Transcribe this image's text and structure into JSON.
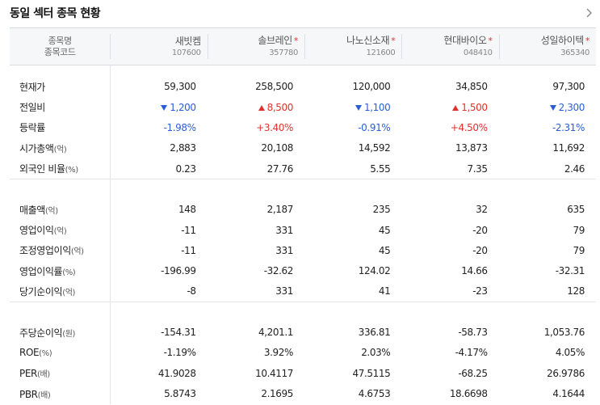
{
  "title": "동일 섹터 종목 현황",
  "header": {
    "label_name": "종목명",
    "label_code": "종목코드"
  },
  "companies": [
    {
      "name": "새빗켐",
      "code": "107600",
      "star": ""
    },
    {
      "name": "솔브레인",
      "code": "357780",
      "star": "*"
    },
    {
      "name": "나노신소재",
      "code": "121600",
      "star": "*"
    },
    {
      "name": "현대바이오",
      "code": "048410",
      "star": "*"
    },
    {
      "name": "성일하이텍",
      "code": "365340",
      "star": "*"
    }
  ],
  "sections": [
    [
      {
        "label": "현재가",
        "unit": "",
        "values": [
          "59,300",
          "258,500",
          "120,000",
          "34,850",
          "97,300"
        ]
      },
      {
        "label": "전일비",
        "unit": "",
        "values": [
          "1,200",
          "8,500",
          "1,100",
          "1,500",
          "2,300"
        ],
        "dirs": [
          "down",
          "up",
          "down",
          "up",
          "down"
        ]
      },
      {
        "label": "등락률",
        "unit": "",
        "values": [
          "-1.98%",
          "+3.40%",
          "-0.91%",
          "+4.50%",
          "-2.31%"
        ],
        "dirs": [
          "down",
          "up",
          "down",
          "up",
          "down"
        ]
      },
      {
        "label": "시가총액",
        "unit": "(억)",
        "values": [
          "2,883",
          "20,108",
          "14,592",
          "13,873",
          "11,692"
        ]
      },
      {
        "label": "외국인 비율",
        "unit": "(%)",
        "values": [
          "0.23",
          "27.76",
          "5.55",
          "7.35",
          "2.46"
        ]
      }
    ],
    [
      {
        "label": "매출액",
        "unit": "(억)",
        "values": [
          "148",
          "2,187",
          "235",
          "32",
          "635"
        ]
      },
      {
        "label": "영업이익",
        "unit": "(억)",
        "values": [
          "-11",
          "331",
          "45",
          "-20",
          "79"
        ]
      },
      {
        "label": "조정영업이익",
        "unit": "(억)",
        "values": [
          "-11",
          "331",
          "45",
          "-20",
          "79"
        ]
      },
      {
        "label": "영업이익률",
        "unit": "(%)",
        "values": [
          "-196.99",
          "-32.62",
          "124.02",
          "14.66",
          "-32.31"
        ]
      },
      {
        "label": "당기순이익",
        "unit": "(억)",
        "values": [
          "-8",
          "331",
          "41",
          "-23",
          "128"
        ]
      }
    ],
    [
      {
        "label": "주당순이익",
        "unit": "(원)",
        "values": [
          "-154.31",
          "4,201.1",
          "336.81",
          "-58.73",
          "1,053.76"
        ]
      },
      {
        "label": "ROE",
        "unit": "(%)",
        "values": [
          "-1.19%",
          "3.92%",
          "2.03%",
          "-4.17%",
          "4.05%"
        ]
      },
      {
        "label": "PER",
        "unit": "(배)",
        "values": [
          "41.9028",
          "10.4117",
          "47.5115",
          "-68.25",
          "26.9786"
        ]
      },
      {
        "label": "PBR",
        "unit": "(배)",
        "values": [
          "5.8743",
          "2.1695",
          "4.6753",
          "18.6698",
          "4.1644"
        ]
      }
    ]
  ],
  "colors": {
    "up": "#e0312b",
    "down": "#2b5ed6",
    "header_bg": "#f6f7f9"
  },
  "icons": {
    "more": "chevron-right-icon",
    "up": "triangle-up-icon",
    "down": "triangle-down-icon"
  }
}
